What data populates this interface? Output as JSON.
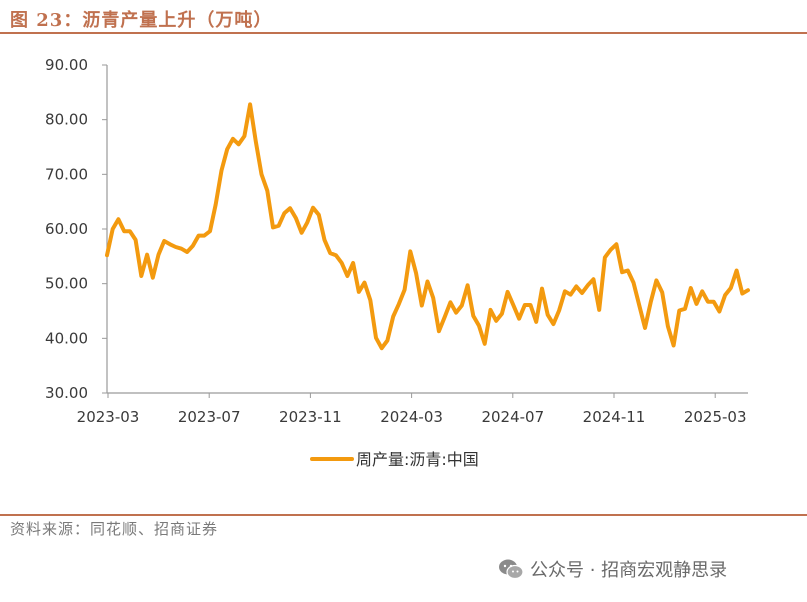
{
  "header": {
    "title": "图 23：沥青产量上升（万吨）"
  },
  "footer": {
    "source": "资料来源：同花顺、招商证券",
    "watermark": "公众号 · 招商宏观静思录"
  },
  "chart_data": {
    "type": "line",
    "title": "",
    "xlabel": "",
    "ylabel": "",
    "ylim": [
      30,
      90
    ],
    "yticks": [
      "90.00",
      "80.00",
      "70.00",
      "60.00",
      "50.00",
      "40.00",
      "30.00"
    ],
    "xticks": [
      "2023-03",
      "2023-07",
      "2023-11",
      "2024-03",
      "2024-07",
      "2024-11",
      "2025-03"
    ],
    "legend_position": "bottom",
    "series": [
      {
        "name": "周产量:沥青:中国",
        "color": "#f39a0f",
        "values": [
          55.2,
          60.0,
          61.8,
          59.6,
          59.6,
          58.0,
          51.4,
          55.3,
          51.1,
          55.3,
          57.8,
          57.2,
          56.7,
          56.4,
          55.8,
          56.9,
          58.8,
          58.8,
          59.6,
          64.5,
          70.7,
          74.6,
          76.5,
          75.5,
          77.0,
          82.8,
          76.0,
          70.0,
          67.0,
          60.3,
          60.6,
          62.9,
          63.8,
          62.0,
          59.3,
          61.2,
          63.9,
          62.6,
          58.0,
          55.6,
          55.2,
          53.8,
          51.4,
          53.8,
          48.5,
          50.2,
          47.0,
          40.1,
          38.2,
          39.6,
          44.0,
          46.3,
          48.9,
          55.9,
          51.9,
          46.0,
          50.4,
          47.4,
          41.3,
          43.9,
          46.6,
          44.7,
          46.0,
          49.7,
          44.1,
          42.3,
          39.0,
          45.2,
          43.2,
          44.5,
          48.5,
          46.1,
          43.6,
          46.1,
          46.1,
          43.0,
          49.1,
          44.3,
          42.6,
          45.1,
          48.6,
          48.0,
          49.5,
          48.3,
          49.7,
          50.8,
          45.2,
          54.8,
          56.2,
          57.2,
          52.1,
          52.4,
          50.2,
          46.0,
          41.9,
          46.6,
          50.6,
          48.4,
          42.2,
          38.7,
          45.1,
          45.4,
          49.2,
          46.3,
          48.6,
          46.7,
          46.7,
          44.9,
          47.9,
          49.2,
          52.4,
          48.2,
          48.8
        ]
      }
    ]
  }
}
